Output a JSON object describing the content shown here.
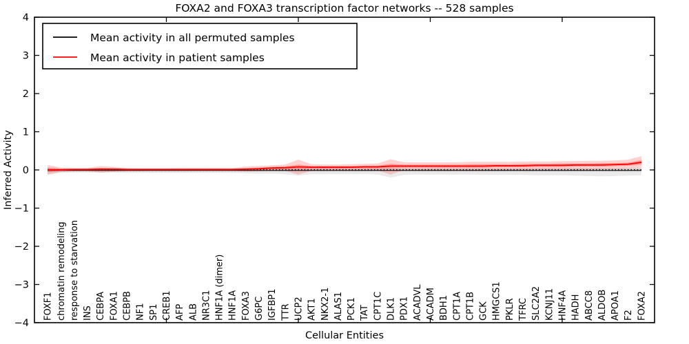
{
  "title": "FOXA2 and FOXA3 transcription factor networks -- 528 samples",
  "axes": {
    "y": {
      "label": "Inferred Activity",
      "ticks": [
        4,
        3,
        2,
        1,
        0,
        -1,
        -2,
        -3,
        -4
      ]
    },
    "x": {
      "label": "Cellular Entities",
      "major_tick_values": [
        10,
        20,
        30,
        40
      ]
    }
  },
  "legend": {
    "entries": [
      {
        "label": "Mean activity in all permuted samples",
        "color": "#000000"
      },
      {
        "label": "Mean activity in patient samples",
        "color": "#ff0000"
      }
    ]
  },
  "colors": {
    "patient_line": "#ff0000",
    "patient_band_outer": "rgba(255,70,70,0.25)",
    "patient_band_inner": "rgba(255,60,60,0.35)",
    "permuted_line": "#000000",
    "permuted_band_outer": "rgba(0,0,0,0.08)",
    "permuted_band_inner": "rgba(0,0,0,0.10)",
    "frame": "#000000"
  },
  "chart_data": {
    "type": "line",
    "title": "FOXA2 and FOXA3 transcription factor networks -- 528 samples",
    "xlabel": "Cellular Entities",
    "ylabel": "Inferred Activity",
    "xlim": [
      0,
      47
    ],
    "ylim": [
      -4,
      4
    ],
    "grid": false,
    "legend_position": "upper left",
    "categories": [
      "FOXF1",
      "chromatin remodeling",
      "response to starvation",
      "INS",
      "CEBPA",
      "FOXA1",
      "CEBPB",
      "NF1",
      "SP1",
      "CREB1",
      "AFP",
      "ALB",
      "NR3C1",
      "HNF1A (dimer)",
      "HNF1A",
      "FOXA3",
      "G6PC",
      "IGFBP1",
      "TTR",
      "UCP2",
      "AKT1",
      "NKX2-1",
      "ALAS1",
      "PCK1",
      "TAT",
      "CPT1C",
      "DLK1",
      "PDX1",
      "ACADVL",
      "ACADM",
      "BDH1",
      "CPT1A",
      "CPT1B",
      "GCK",
      "HMGCS1",
      "PKLR",
      "TFRC",
      "SLC2A2",
      "KCNJ11",
      "HNF4A",
      "HADH",
      "ABCC8",
      "ALDOB",
      "APOA1",
      "F2",
      "FOXA2"
    ],
    "x": [
      1,
      2,
      3,
      4,
      5,
      6,
      7,
      8,
      9,
      10,
      11,
      12,
      13,
      14,
      15,
      16,
      17,
      18,
      19,
      20,
      21,
      22,
      23,
      24,
      25,
      26,
      27,
      28,
      29,
      30,
      31,
      32,
      33,
      34,
      35,
      36,
      37,
      38,
      39,
      40,
      41,
      42,
      43,
      44,
      45,
      46
    ],
    "series": [
      {
        "name": "patient_mean",
        "values": [
          0.0,
          0.0,
          0.01,
          0.01,
          0.02,
          0.02,
          0.01,
          0.01,
          0.01,
          0.01,
          0.01,
          0.01,
          0.01,
          0.01,
          0.01,
          0.02,
          0.03,
          0.05,
          0.06,
          0.08,
          0.07,
          0.07,
          0.07,
          0.07,
          0.08,
          0.08,
          0.1,
          0.1,
          0.1,
          0.1,
          0.1,
          0.1,
          0.1,
          0.1,
          0.11,
          0.11,
          0.11,
          0.12,
          0.12,
          0.12,
          0.13,
          0.13,
          0.13,
          0.14,
          0.15,
          0.2
        ]
      },
      {
        "name": "patient_band_outer_upper",
        "values": [
          0.13,
          0.06,
          0.05,
          0.05,
          0.1,
          0.08,
          0.05,
          0.04,
          0.04,
          0.04,
          0.05,
          0.05,
          0.05,
          0.05,
          0.05,
          0.09,
          0.1,
          0.12,
          0.14,
          0.27,
          0.15,
          0.14,
          0.14,
          0.15,
          0.16,
          0.17,
          0.28,
          0.2,
          0.2,
          0.2,
          0.2,
          0.2,
          0.21,
          0.21,
          0.21,
          0.21,
          0.22,
          0.22,
          0.22,
          0.23,
          0.23,
          0.24,
          0.24,
          0.25,
          0.27,
          0.36
        ]
      },
      {
        "name": "patient_band_outer_lower",
        "values": [
          -0.13,
          -0.05,
          -0.03,
          -0.03,
          -0.07,
          -0.05,
          -0.03,
          -0.03,
          -0.02,
          -0.02,
          -0.02,
          -0.02,
          -0.02,
          -0.02,
          -0.02,
          -0.04,
          -0.03,
          -0.02,
          -0.02,
          -0.12,
          -0.02,
          -0.01,
          -0.01,
          -0.01,
          -0.01,
          -0.01,
          -0.12,
          0.0,
          0.0,
          0.0,
          0.0,
          0.0,
          0.0,
          0.0,
          0.0,
          0.0,
          0.0,
          0.01,
          0.01,
          0.01,
          0.01,
          0.01,
          0.02,
          0.02,
          0.03,
          0.05
        ]
      },
      {
        "name": "patient_band_inner_upper",
        "values": [
          0.06,
          0.03,
          0.03,
          0.03,
          0.05,
          0.04,
          0.03,
          0.03,
          0.03,
          0.03,
          0.03,
          0.03,
          0.03,
          0.03,
          0.03,
          0.04,
          0.06,
          0.08,
          0.09,
          0.14,
          0.1,
          0.1,
          0.1,
          0.1,
          0.11,
          0.11,
          0.16,
          0.14,
          0.14,
          0.14,
          0.14,
          0.14,
          0.15,
          0.15,
          0.15,
          0.15,
          0.16,
          0.16,
          0.16,
          0.17,
          0.17,
          0.17,
          0.18,
          0.18,
          0.19,
          0.26
        ]
      },
      {
        "name": "patient_band_inner_lower",
        "values": [
          -0.06,
          -0.02,
          -0.01,
          -0.01,
          -0.02,
          -0.02,
          -0.01,
          -0.01,
          -0.01,
          -0.01,
          -0.01,
          -0.01,
          -0.01,
          -0.01,
          -0.01,
          -0.01,
          0.0,
          0.01,
          0.02,
          0.02,
          0.03,
          0.03,
          0.03,
          0.04,
          0.04,
          0.04,
          0.04,
          0.06,
          0.06,
          0.06,
          0.06,
          0.06,
          0.06,
          0.06,
          0.07,
          0.07,
          0.07,
          0.08,
          0.08,
          0.08,
          0.09,
          0.09,
          0.09,
          0.1,
          0.11,
          0.14
        ]
      },
      {
        "name": "permuted_mean",
        "values": [
          -0.01,
          -0.01,
          -0.01,
          -0.01,
          -0.01,
          -0.01,
          -0.01,
          -0.01,
          -0.01,
          -0.01,
          -0.01,
          -0.01,
          -0.01,
          -0.01,
          -0.01,
          -0.01,
          -0.01,
          -0.01,
          -0.01,
          -0.01,
          -0.01,
          -0.01,
          -0.01,
          -0.01,
          -0.01,
          -0.01,
          -0.01,
          -0.01,
          -0.01,
          -0.01,
          -0.01,
          -0.01,
          -0.01,
          -0.01,
          -0.01,
          -0.01,
          -0.01,
          -0.01,
          -0.01,
          -0.01,
          -0.01,
          -0.01,
          -0.01,
          -0.01,
          -0.01,
          -0.01
        ]
      },
      {
        "name": "permuted_band_outer_upper",
        "values": [
          0.07,
          0.06,
          0.05,
          0.05,
          0.05,
          0.05,
          0.05,
          0.05,
          0.05,
          0.05,
          0.05,
          0.05,
          0.05,
          0.05,
          0.05,
          0.05,
          0.05,
          0.05,
          0.05,
          0.05,
          0.05,
          0.05,
          0.05,
          0.05,
          0.05,
          0.05,
          0.05,
          0.05,
          0.05,
          0.05,
          0.05,
          0.05,
          0.05,
          0.05,
          0.05,
          0.05,
          0.05,
          0.05,
          0.05,
          0.05,
          0.05,
          0.05,
          0.05,
          0.05,
          0.05,
          0.06
        ]
      },
      {
        "name": "permuted_band_outer_lower",
        "values": [
          -0.11,
          -0.08,
          -0.07,
          -0.07,
          -0.07,
          -0.07,
          -0.08,
          -0.08,
          -0.08,
          -0.08,
          -0.08,
          -0.08,
          -0.08,
          -0.08,
          -0.08,
          -0.09,
          -0.1,
          -0.1,
          -0.11,
          -0.15,
          -0.11,
          -0.11,
          -0.11,
          -0.11,
          -0.11,
          -0.12,
          -0.2,
          -0.13,
          -0.12,
          -0.12,
          -0.12,
          -0.12,
          -0.12,
          -0.13,
          -0.13,
          -0.13,
          -0.13,
          -0.14,
          -0.14,
          -0.14,
          -0.15,
          -0.16,
          -0.17,
          -0.16,
          -0.15,
          -0.14
        ]
      },
      {
        "name": "permuted_band_inner_upper",
        "values": [
          0.03,
          0.03,
          0.03,
          0.03,
          0.03,
          0.03,
          0.03,
          0.03,
          0.03,
          0.03,
          0.03,
          0.03,
          0.03,
          0.03,
          0.03,
          0.03,
          0.03,
          0.03,
          0.03,
          0.03,
          0.03,
          0.03,
          0.03,
          0.03,
          0.03,
          0.03,
          0.03,
          0.03,
          0.03,
          0.03,
          0.03,
          0.03,
          0.03,
          0.03,
          0.03,
          0.03,
          0.03,
          0.03,
          0.03,
          0.03,
          0.03,
          0.03,
          0.03,
          0.03,
          0.03,
          0.03
        ]
      },
      {
        "name": "permuted_band_inner_lower",
        "values": [
          -0.05,
          -0.05,
          -0.05,
          -0.05,
          -0.05,
          -0.05,
          -0.05,
          -0.05,
          -0.05,
          -0.05,
          -0.05,
          -0.05,
          -0.05,
          -0.05,
          -0.05,
          -0.05,
          -0.05,
          -0.05,
          -0.05,
          -0.05,
          -0.05,
          -0.05,
          -0.05,
          -0.05,
          -0.05,
          -0.05,
          -0.05,
          -0.05,
          -0.05,
          -0.05,
          -0.05,
          -0.05,
          -0.05,
          -0.05,
          -0.05,
          -0.05,
          -0.05,
          -0.05,
          -0.05,
          -0.05,
          -0.05,
          -0.05,
          -0.05,
          -0.05,
          -0.05,
          -0.05
        ]
      }
    ],
    "zero_reference_line": {
      "value": 0,
      "style": "dotted",
      "color": "#000000"
    }
  }
}
